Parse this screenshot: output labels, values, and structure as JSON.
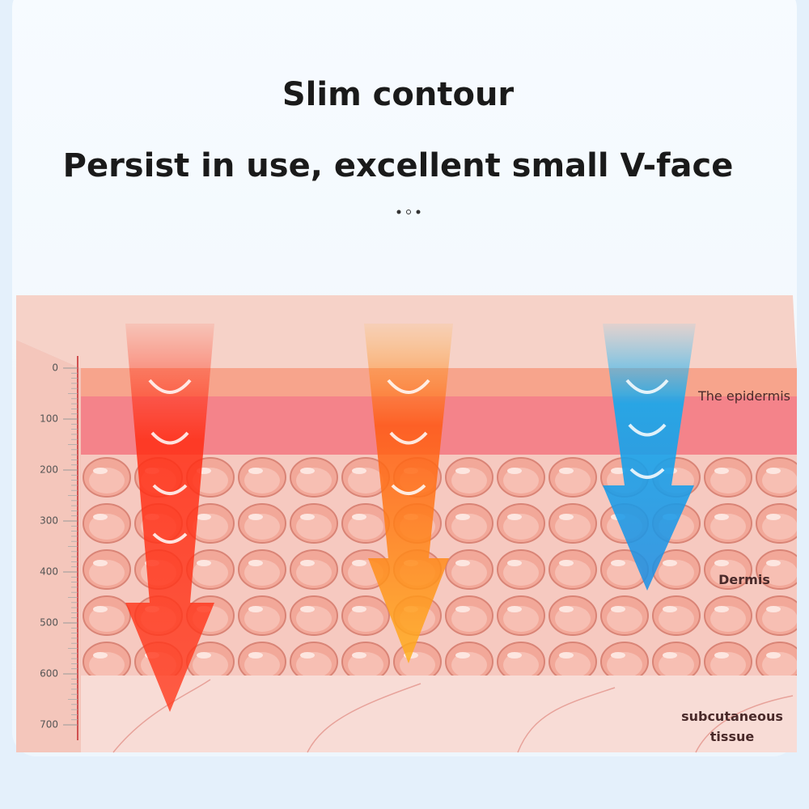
{
  "header": {
    "title": "Slim contour",
    "subtitle": "Persist in use, excellent small V-face"
  },
  "scale": {
    "ticks": [
      0,
      100,
      200,
      300,
      400,
      500,
      600,
      700
    ]
  },
  "layers": {
    "epidermis": "The epidermis",
    "dermis": "Dermis",
    "subcutaneous": [
      "subcutaneous",
      "tissue"
    ]
  }
}
